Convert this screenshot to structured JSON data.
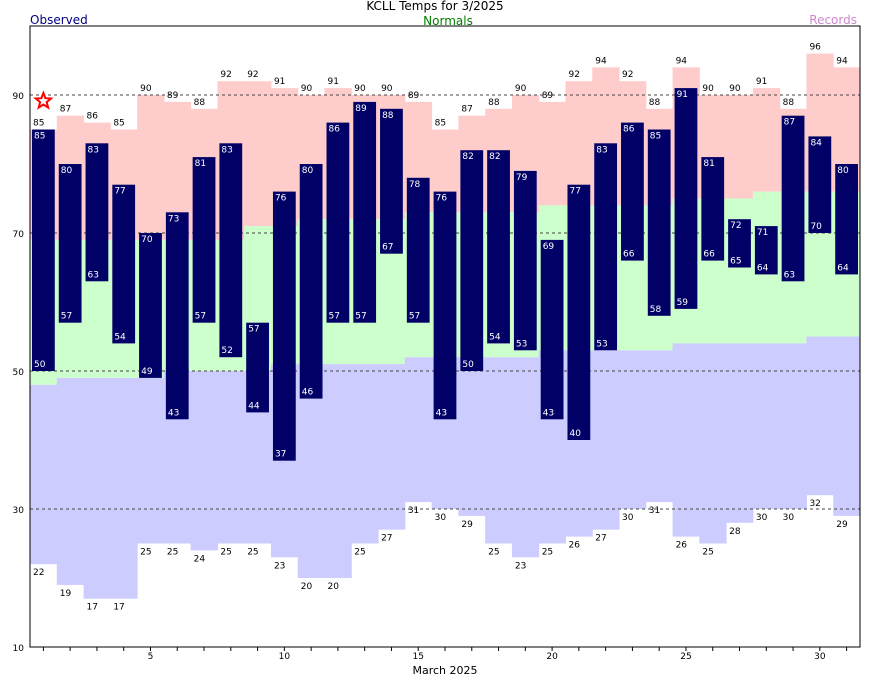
{
  "chart_data": {
    "type": "bar",
    "title": "KCLL Temps for 3/2025",
    "legend": {
      "observed": "Observed",
      "normals": "Normals",
      "records": "Records"
    },
    "xlabel": "March 2025",
    "ylabel": "",
    "ylim": [
      10,
      100
    ],
    "yticks": [
      10,
      30,
      50,
      70,
      90
    ],
    "xticks": [
      5,
      10,
      15,
      20,
      25,
      30
    ],
    "grid": true,
    "days": [
      1,
      2,
      3,
      4,
      5,
      6,
      7,
      8,
      9,
      10,
      11,
      12,
      13,
      14,
      15,
      16,
      17,
      18,
      19,
      20,
      21,
      22,
      23,
      24,
      25,
      26,
      27,
      28,
      29,
      30,
      31
    ],
    "record_high": [
      85,
      87,
      86,
      85,
      90,
      89,
      88,
      92,
      92,
      91,
      90,
      91,
      90,
      90,
      89,
      85,
      87,
      88,
      90,
      89,
      92,
      94,
      92,
      88,
      94,
      90,
      90,
      91,
      88,
      96,
      94
    ],
    "record_low": [
      22,
      19,
      17,
      17,
      25,
      25,
      24,
      25,
      25,
      23,
      20,
      20,
      25,
      27,
      31,
      30,
      29,
      25,
      23,
      25,
      26,
      27,
      30,
      31,
      26,
      25,
      28,
      30,
      30,
      32,
      29
    ],
    "normal_high": [
      69,
      69,
      69,
      69,
      69,
      69,
      69,
      69,
      71,
      71,
      72,
      72,
      72,
      72,
      73,
      73,
      73,
      73,
      73,
      74,
      74,
      74,
      74,
      74,
      75,
      75,
      75,
      76,
      76,
      76,
      76
    ],
    "normal_low": [
      48,
      49,
      49,
      49,
      49,
      50,
      50,
      50,
      50,
      51,
      51,
      51,
      51,
      51,
      52,
      52,
      52,
      52,
      52,
      53,
      53,
      53,
      53,
      53,
      54,
      54,
      54,
      54,
      54,
      55,
      55
    ],
    "observed_high": [
      85,
      80,
      83,
      77,
      70,
      73,
      81,
      83,
      57,
      76,
      80,
      86,
      89,
      88,
      78,
      76,
      82,
      82,
      79,
      69,
      77,
      83,
      86,
      85,
      91,
      81,
      72,
      71,
      87,
      84,
      80
    ],
    "observed_low": [
      50,
      57,
      63,
      54,
      49,
      43,
      57,
      52,
      44,
      37,
      46,
      57,
      57,
      67,
      57,
      43,
      50,
      54,
      53,
      43,
      40,
      53,
      66,
      58,
      59,
      66,
      65,
      64,
      63,
      70,
      64
    ],
    "record_tied_days": [
      1
    ],
    "colors": {
      "observed": "#000066",
      "normals": "#ccffcc",
      "records_high": "#ffcccc",
      "records_low": "#ccccff",
      "observed_label": "#000080",
      "normals_label": "#008000",
      "records_label": "#cc88cc",
      "star": "#ff0000"
    }
  }
}
